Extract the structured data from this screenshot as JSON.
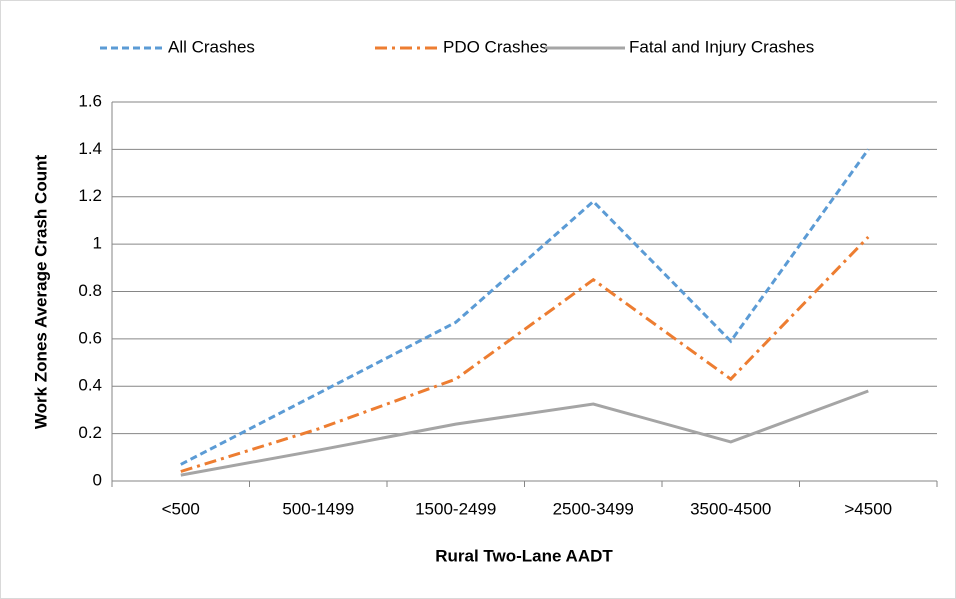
{
  "chart_data": {
    "type": "line",
    "xlabel": "Rural Two-Lane AADT",
    "ylabel": "Work Zones Average Crash Count",
    "categories": [
      "<500",
      "500-1499",
      "1500-2499",
      "2500-3499",
      "3500-4500",
      ">4500"
    ],
    "series": [
      {
        "name": "All Crashes",
        "color": "#5b9bd5",
        "dash": "dashed",
        "values": [
          0.07,
          0.37,
          0.67,
          1.18,
          0.59,
          1.4
        ]
      },
      {
        "name": "PDO Crashes",
        "color": "#ed7d31",
        "dash": "dashdot",
        "values": [
          0.04,
          0.22,
          0.43,
          0.85,
          0.43,
          1.03
        ]
      },
      {
        "name": "Fatal and Injury Crashes",
        "color": "#a5a5a5",
        "dash": "solid",
        "values": [
          0.025,
          0.13,
          0.24,
          0.325,
          0.165,
          0.38
        ]
      }
    ],
    "ylim": [
      0,
      1.6
    ],
    "yticks": [
      0,
      0.2,
      0.4,
      0.6,
      0.8,
      1,
      1.2,
      1.4,
      1.6
    ],
    "grid": true,
    "legend": "top"
  }
}
